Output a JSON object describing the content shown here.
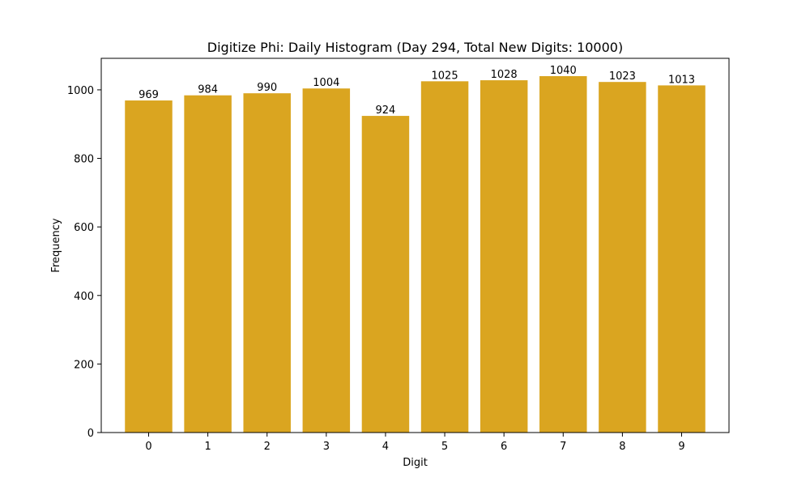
{
  "chart_data": {
    "type": "bar",
    "title": "Digitize Phi: Daily Histogram (Day 294, Total New Digits: 10000)",
    "xlabel": "Digit",
    "ylabel": "Frequency",
    "categories": [
      "0",
      "1",
      "2",
      "3",
      "4",
      "5",
      "6",
      "7",
      "8",
      "9"
    ],
    "values": [
      969,
      984,
      990,
      1004,
      924,
      1025,
      1028,
      1040,
      1023,
      1013
    ],
    "data_labels": [
      "969",
      "984",
      "990",
      "1004",
      "924",
      "1025",
      "1028",
      "1040",
      "1023",
      "1013"
    ],
    "ylim": [
      0,
      1092
    ],
    "yticks": [
      0,
      200,
      400,
      600,
      800,
      1000
    ],
    "ytick_labels": [
      "0",
      "200",
      "400",
      "600",
      "800",
      "1000"
    ],
    "bar_color": "#daa520",
    "grid": false,
    "legend": "none"
  }
}
